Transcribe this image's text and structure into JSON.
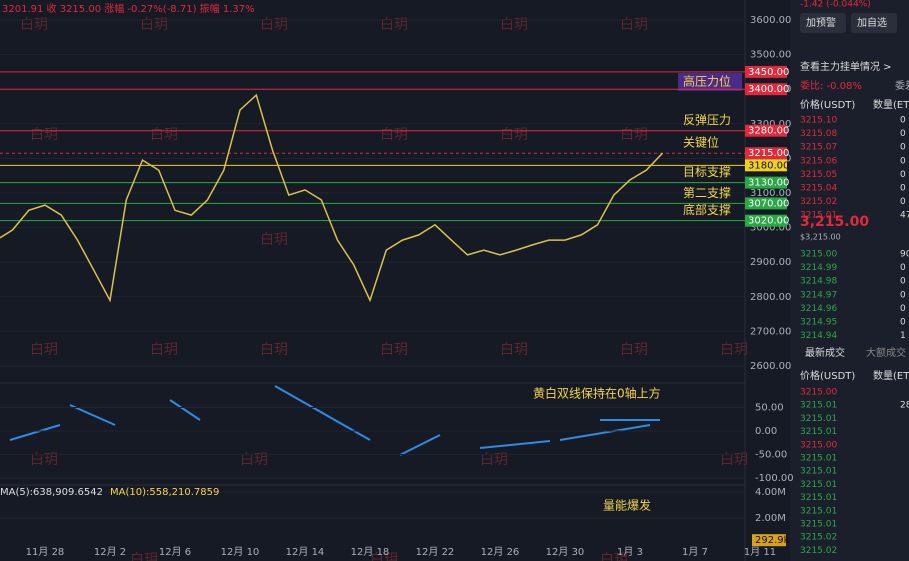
{
  "chart_data": {
    "type": "line",
    "header": "3201.91 收 3215.00 涨幅 -0.27%(-8.71) 振幅 1.37%",
    "watermark": "白玥",
    "color": "#d9c24a",
    "categories": [
      null,
      null,
      null,
      "11月 28",
      null,
      null,
      null,
      "12月 2",
      null,
      null,
      null,
      "12月 6",
      null,
      null,
      null,
      "12月 10",
      null,
      null,
      null,
      "12月 14",
      null,
      null,
      null,
      "12月 18",
      null,
      null,
      null,
      "12月 22",
      null,
      null,
      null,
      "12月 26",
      null,
      null,
      null,
      "12月 30",
      null,
      null,
      null,
      "1月 3",
      null,
      null,
      null,
      "1月 7",
      null,
      null,
      null,
      "1月 11"
    ],
    "values": [
      2964,
      2993,
      3050,
      3065,
      3036,
      2964,
      2877,
      2790,
      3080,
      3195,
      3166,
      3050,
      3036,
      3080,
      3166,
      3340,
      3383,
      3224,
      3094,
      3109,
      3080,
      2964,
      2892,
      2790,
      2935,
      2964,
      2979,
      3008,
      2964,
      2921,
      2935,
      2921,
      2935,
      2950,
      2964,
      2964,
      2979,
      3008,
      3094,
      3138,
      3166,
      3215,
      null,
      null,
      null,
      null,
      null,
      null
    ],
    "ylim": [
      2600,
      3600
    ],
    "yticks": [
      {
        "value": 3600,
        "label": "3600.00"
      },
      {
        "value": 3500,
        "label": "3500.00"
      },
      {
        "value": 3400,
        "label": "3400.00"
      },
      {
        "value": 3300,
        "label": "3300.00"
      },
      {
        "value": 3200,
        "label": "3200.00"
      },
      {
        "value": 3100,
        "label": "3100.00"
      },
      {
        "value": 3000,
        "label": "3000.00"
      },
      {
        "value": 2900,
        "label": "2900.00"
      },
      {
        "value": 2800,
        "label": "2800.00"
      },
      {
        "value": 2700,
        "label": "2700.00"
      },
      {
        "value": 2600,
        "label": "2600.00"
      }
    ],
    "levels": [
      {
        "value": 3450,
        "label": "3450.00",
        "color": "#e0293b",
        "note": "高压力位"
      },
      {
        "value": 3400,
        "label": "3400.00",
        "color": "#e0293b"
      },
      {
        "value": 3280,
        "label": "3280.00",
        "color": "#e0293b",
        "note": "反弹压力"
      },
      {
        "value": 3215,
        "label": "3215.00",
        "color": "#e0293b",
        "note": "关键位"
      },
      {
        "value": 3180,
        "label": "3180.00",
        "color": "#f0d020"
      },
      {
        "value": 3130,
        "label": "3130.00",
        "color": "#2aa845",
        "note": "目标支撑"
      },
      {
        "value": 3070,
        "label": "3070.00",
        "color": "#2aa845",
        "note": "第二支撑"
      },
      {
        "value": 3020,
        "label": "3020.00",
        "color": "#2aa845",
        "note": "底部支撑"
      }
    ],
    "macd": {
      "note": "黄白双线保持在0轴上方",
      "ylim": [
        -100,
        50
      ],
      "yticks": [
        {
          "value": 50,
          "label": "50.00"
        },
        {
          "value": 0,
          "label": "0.00"
        },
        {
          "value": -50,
          "label": "-50.00"
        },
        {
          "value": -100,
          "label": "-100.00"
        }
      ]
    },
    "volume": {
      "ma5": "MA(5):638,909.6542",
      "ma10": "MA(10):558,210.7859",
      "note": "量能爆发",
      "yticks": [
        {
          "value": 4000000,
          "label": "4.00M"
        },
        {
          "value": 2000000,
          "label": "2.00M"
        }
      ],
      "last": {
        "value": 292900,
        "label": "292.9k"
      }
    }
  },
  "sidebar": {
    "basis": "-1.42 (-0.044%)",
    "buttons": [
      "加预警",
      "加自选"
    ],
    "orders_link": "查看主力挂单情况 >",
    "ratio": "委比: -0.08%",
    "diff": "委差",
    "headers": [
      "价格(USDT)",
      "数量(ET"
    ],
    "asks": [
      [
        "3215.10",
        "0"
      ],
      [
        "3215.08",
        "0"
      ],
      [
        "3215.07",
        "0"
      ],
      [
        "3215.06",
        "0"
      ],
      [
        "3215.05",
        "0"
      ],
      [
        "3215.04",
        "0"
      ],
      [
        "3215.02",
        "0"
      ],
      [
        "3215.01",
        "47"
      ]
    ],
    "last_price": "3,215.00",
    "last_usd": "$3,215.00",
    "bids": [
      [
        "3215.00",
        "90"
      ],
      [
        "3214.99",
        "0"
      ],
      [
        "3214.98",
        "0"
      ],
      [
        "3214.97",
        "0"
      ],
      [
        "3214.96",
        "0"
      ],
      [
        "3214.95",
        "0"
      ],
      [
        "3214.94",
        "1"
      ]
    ],
    "tabs": [
      "最新成交",
      "大额成交"
    ],
    "trades": [
      [
        "3215.00",
        ""
      ],
      [
        "3215.01",
        "28"
      ],
      [
        "3215.01",
        ""
      ],
      [
        "3215.01",
        ""
      ],
      [
        "3215.00",
        ""
      ],
      [
        "3215.01",
        ""
      ],
      [
        "3215.01",
        ""
      ],
      [
        "3215.01",
        ""
      ],
      [
        "3215.01",
        ""
      ],
      [
        "3215.01",
        ""
      ],
      [
        "3215.01",
        ""
      ],
      [
        "3215.02",
        ""
      ],
      [
        "3215.02",
        ""
      ]
    ]
  }
}
